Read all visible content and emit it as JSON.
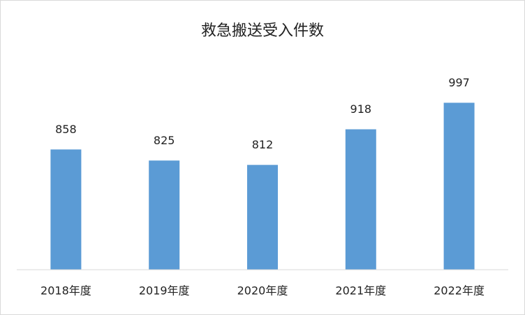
{
  "chart_data": {
    "type": "bar",
    "title": "救急搬送受入件数",
    "categories": [
      "2018年度",
      "2019年度",
      "2020年度",
      "2021年度",
      "2022年度"
    ],
    "values": [
      858,
      825,
      812,
      918,
      997
    ],
    "color": "#5b9bd5",
    "ylim": [
      500,
      1000
    ],
    "grid": false
  }
}
